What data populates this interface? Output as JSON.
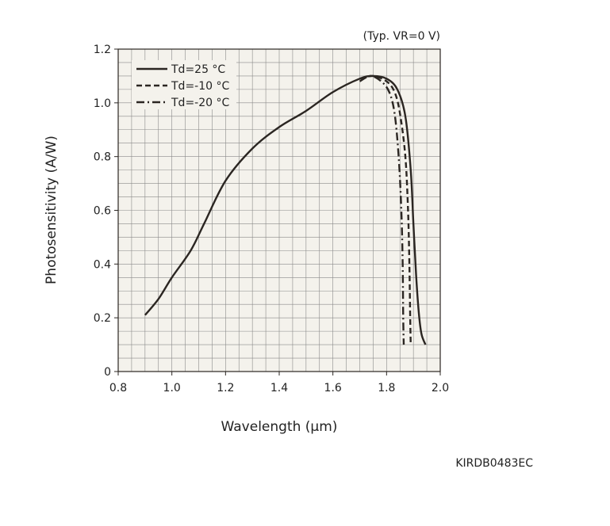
{
  "chart_data": {
    "type": "line",
    "condition_note": "(Typ. VR=0 V)",
    "xlabel": "Wavelength (μm)",
    "ylabel": "Photosensitivity (A/W)",
    "xlim": [
      0.8,
      2.0
    ],
    "ylim": [
      0,
      1.2
    ],
    "x_ticks": [
      "0.8",
      "1.0",
      "1.2",
      "1.4",
      "1.6",
      "1.8",
      "2.0"
    ],
    "y_ticks": [
      "0",
      "0.2",
      "0.4",
      "0.6",
      "0.8",
      "1.0",
      "1.2"
    ],
    "grid": true,
    "legend_position": "top-left",
    "colors": {
      "plot_background": "#f4f2ec",
      "grid": "#8a8a8a",
      "line": "#2b2622"
    },
    "series": [
      {
        "name": "Td=25 °C",
        "style": "solid",
        "x": [
          0.9,
          0.95,
          1.0,
          1.07,
          1.12,
          1.2,
          1.3,
          1.4,
          1.5,
          1.6,
          1.7,
          1.75,
          1.8,
          1.84,
          1.87,
          1.89,
          1.9,
          1.91,
          1.92,
          1.93,
          1.945
        ],
        "y": [
          0.21,
          0.27,
          0.35,
          0.45,
          0.55,
          0.71,
          0.83,
          0.91,
          0.97,
          1.04,
          1.09,
          1.1,
          1.09,
          1.05,
          0.95,
          0.75,
          0.55,
          0.36,
          0.22,
          0.14,
          0.1
        ]
      },
      {
        "name": "Td=-10 °C",
        "style": "dashed",
        "x": [
          1.7,
          1.75,
          1.8,
          1.83,
          1.85,
          1.87,
          1.88,
          1.885,
          1.888,
          1.89
        ],
        "y": [
          1.09,
          1.1,
          1.08,
          1.04,
          0.96,
          0.8,
          0.6,
          0.4,
          0.2,
          0.1
        ]
      },
      {
        "name": "Td=-20 °C",
        "style": "dash-dot",
        "x": [
          1.7,
          1.74,
          1.78,
          1.81,
          1.83,
          1.845,
          1.855,
          1.86,
          1.862,
          1.864
        ],
        "y": [
          1.08,
          1.1,
          1.08,
          1.04,
          0.96,
          0.8,
          0.6,
          0.4,
          0.2,
          0.1
        ]
      }
    ]
  },
  "figure_code": "KIRDB0483EC"
}
